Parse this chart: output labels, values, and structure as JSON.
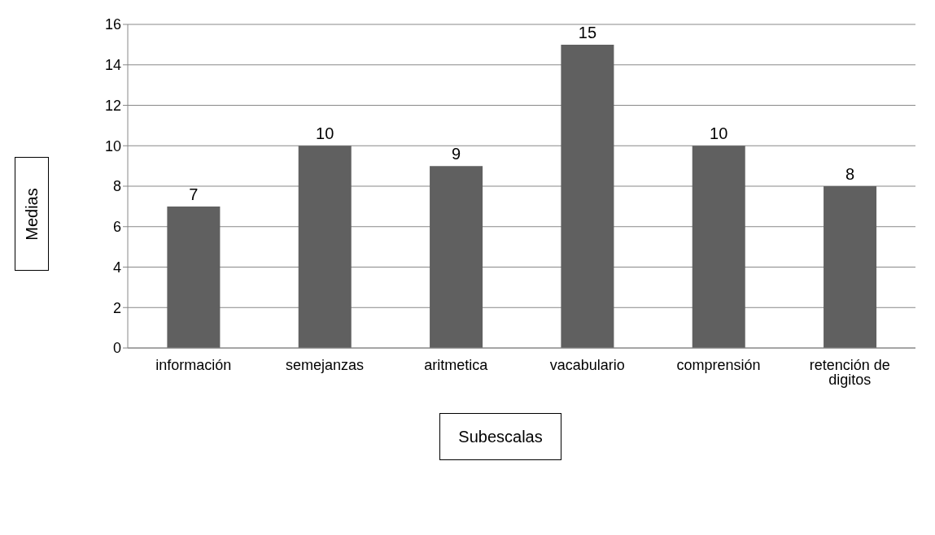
{
  "chart_data": {
    "type": "bar",
    "categories": [
      "información",
      "semejanzas",
      "aritmetica",
      "vacabulario",
      "comprensión",
      "retención de digitos"
    ],
    "values": [
      7,
      10,
      9,
      15,
      10,
      8
    ],
    "color": "#606060",
    "ylim": [
      0,
      16
    ],
    "yticks": [
      0,
      2,
      4,
      6,
      8,
      10,
      12,
      14,
      16
    ],
    "grid": "y",
    "data_labels": true,
    "xlabel": "Subescalas",
    "ylabel": "Medias"
  }
}
